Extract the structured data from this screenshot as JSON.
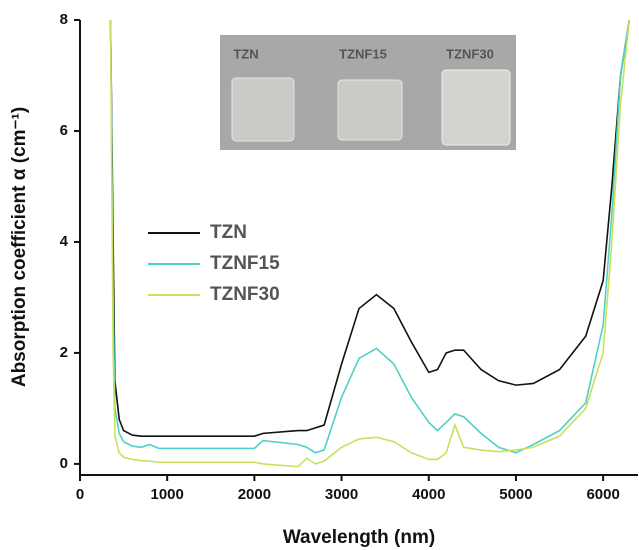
{
  "chart_data": {
    "type": "line",
    "x_label": "Wavelength (nm)",
    "y_label": "Absorption coefficient α (cm⁻¹)",
    "xlim": [
      0,
      6400
    ],
    "ylim": [
      -0.2,
      8
    ],
    "xticks": [
      0,
      1000,
      2000,
      3000,
      4000,
      5000,
      6000
    ],
    "yticks": [
      0,
      2,
      4,
      6,
      8
    ],
    "inset_labels": [
      "TZN",
      "TZNF15",
      "TZNF30"
    ],
    "x": [
      350,
      380,
      400,
      450,
      500,
      600,
      700,
      800,
      900,
      1000,
      1500,
      2000,
      2100,
      2500,
      2600,
      2700,
      2800,
      3000,
      3200,
      3400,
      3600,
      3800,
      4000,
      4100,
      4200,
      4300,
      4400,
      4600,
      4800,
      5000,
      5200,
      5500,
      5800,
      6000,
      6100,
      6200,
      6300
    ],
    "series": [
      {
        "name": "TZN",
        "color": "#111111",
        "values": [
          8,
          4,
          1.5,
          0.8,
          0.6,
          0.52,
          0.5,
          0.5,
          0.5,
          0.5,
          0.5,
          0.5,
          0.55,
          0.6,
          0.6,
          0.65,
          0.7,
          1.8,
          2.8,
          3.05,
          2.8,
          2.2,
          1.65,
          1.7,
          2.0,
          2.05,
          2.05,
          1.7,
          1.5,
          1.42,
          1.45,
          1.7,
          2.3,
          3.3,
          5,
          7,
          8
        ]
      },
      {
        "name": "TZNF15",
        "color": "#4fd1c5",
        "values": [
          8,
          3,
          1.0,
          0.55,
          0.4,
          0.32,
          0.3,
          0.35,
          0.28,
          0.28,
          0.28,
          0.28,
          0.42,
          0.35,
          0.3,
          0.2,
          0.25,
          1.2,
          1.9,
          2.08,
          1.8,
          1.2,
          0.75,
          0.6,
          0.75,
          0.9,
          0.85,
          0.55,
          0.3,
          0.2,
          0.35,
          0.6,
          1.1,
          2.5,
          4.5,
          7,
          8
        ]
      },
      {
        "name": "TZNF30",
        "color": "#c9e05c",
        "values": [
          8,
          2,
          0.5,
          0.2,
          0.12,
          0.08,
          0.06,
          0.05,
          0.03,
          0.03,
          0.03,
          0.03,
          0.0,
          -0.05,
          0.1,
          0.0,
          0.05,
          0.3,
          0.45,
          0.48,
          0.4,
          0.2,
          0.08,
          0.08,
          0.2,
          0.7,
          0.3,
          0.25,
          0.22,
          0.25,
          0.3,
          0.5,
          1.0,
          2.0,
          4,
          6.5,
          8
        ]
      }
    ]
  }
}
